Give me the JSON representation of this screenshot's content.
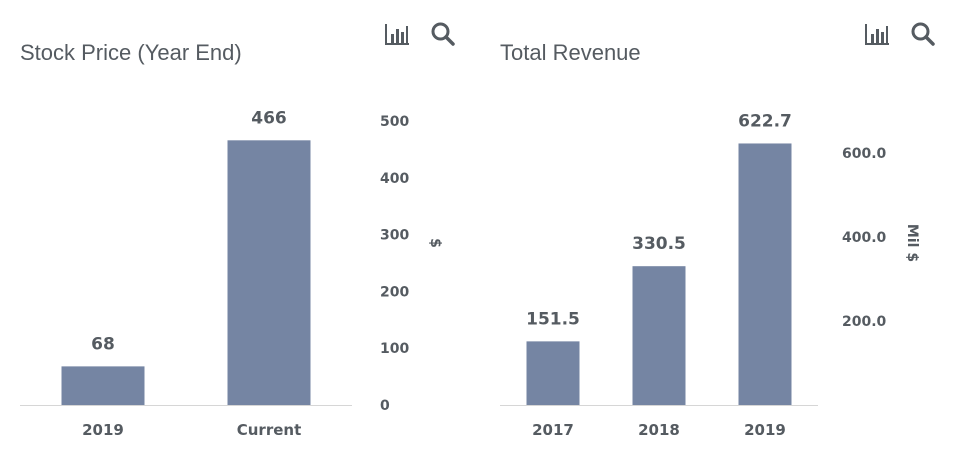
{
  "icons": {
    "chart": "bar-chart-icon",
    "search": "search-icon"
  },
  "colors": {
    "bar": "#7585a3",
    "text": "#555b61",
    "axis": "#d6d6d6"
  },
  "chart_data": [
    {
      "type": "bar",
      "title": "Stock Price (Year End)",
      "categories": [
        "2019",
        "Current"
      ],
      "values": [
        68,
        466
      ],
      "value_labels": [
        "68",
        "466"
      ],
      "ylabel": "$",
      "ylim": [
        0,
        500
      ],
      "yticks": [
        0,
        100,
        200,
        300,
        400,
        500
      ],
      "ytick_labels": [
        "0",
        "100",
        "200",
        "300",
        "400",
        "500"
      ],
      "yaxis_side": "right",
      "grid": false
    },
    {
      "type": "bar",
      "title": "Total Revenue",
      "categories": [
        "2017",
        "2018",
        "2019"
      ],
      "values": [
        151.5,
        330.5,
        622.7
      ],
      "value_labels": [
        "151.5",
        "330.5",
        "622.7"
      ],
      "ylabel": "Mil $",
      "ylim": [
        0,
        700
      ],
      "yticks": [
        200,
        400,
        600
      ],
      "ytick_labels": [
        "200.0",
        "400.0",
        "600.0"
      ],
      "yaxis_side": "right",
      "grid": false
    }
  ]
}
